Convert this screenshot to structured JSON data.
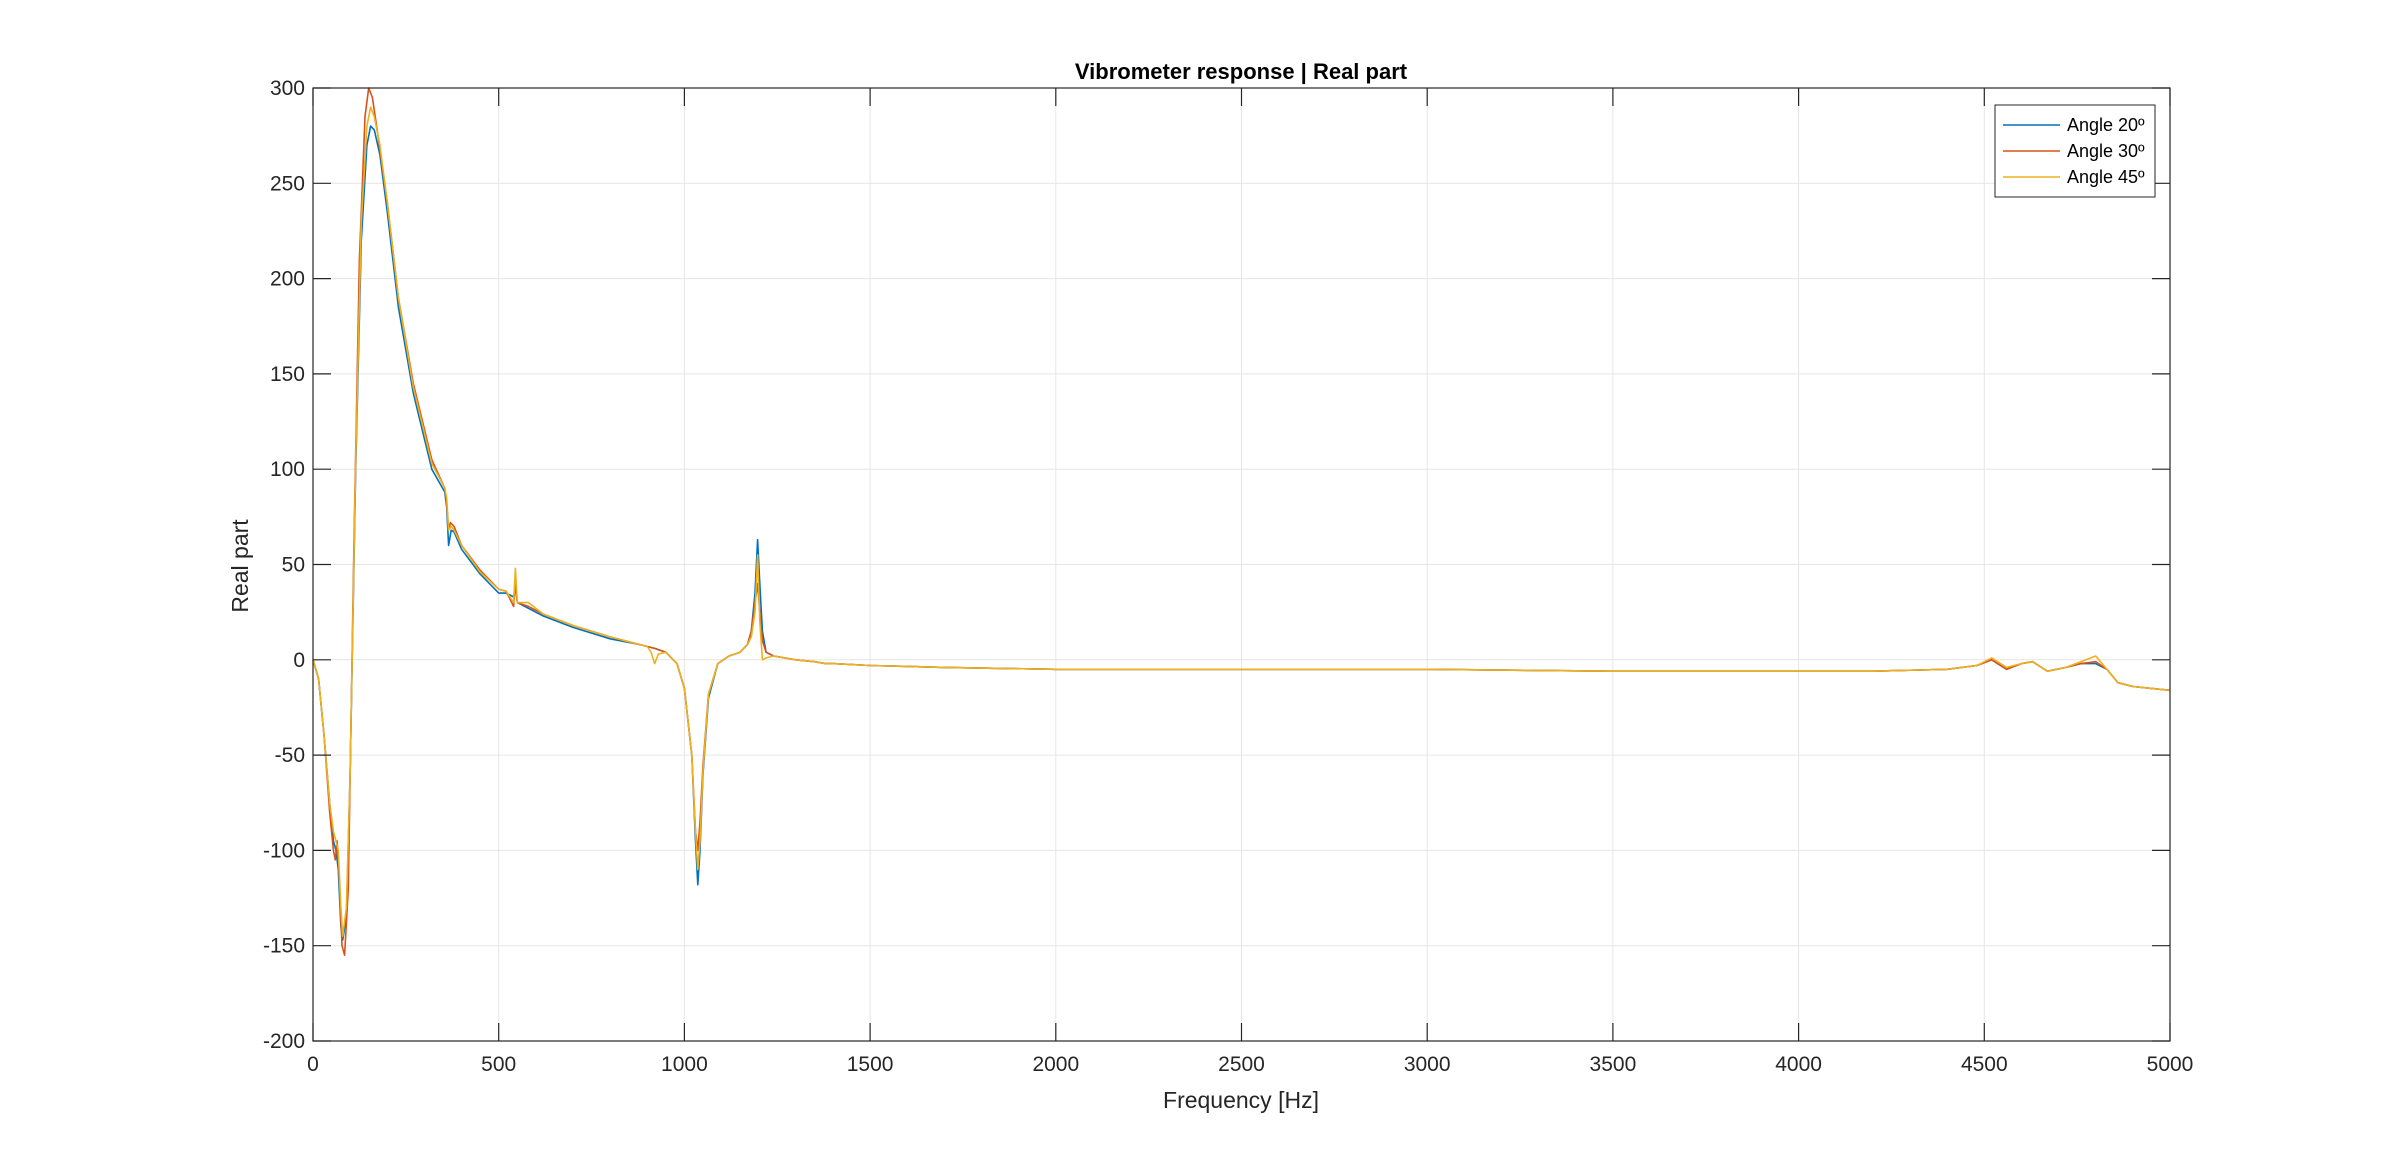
{
  "chart_data": {
    "type": "line",
    "title": "Vibrometer response | Real part",
    "xlabel": "Frequency [Hz]",
    "ylabel": "Real part",
    "xlim": [
      0,
      5000
    ],
    "ylim": [
      -200,
      300
    ],
    "xticks": [
      0,
      500,
      1000,
      1500,
      2000,
      2500,
      3000,
      3500,
      4000,
      4500,
      5000
    ],
    "yticks": [
      -200,
      -150,
      -100,
      -50,
      0,
      50,
      100,
      150,
      200,
      250,
      300
    ],
    "xtick_labels": [
      "0",
      "500",
      "1000",
      "1500",
      "2000",
      "2500",
      "3000",
      "3500",
      "4000",
      "4500",
      "5000"
    ],
    "ytick_labels": [
      "-200",
      "-150",
      "-100",
      "-50",
      "0",
      "50",
      "100",
      "150",
      "200",
      "250",
      "300"
    ],
    "grid": true,
    "legend_position": "top-right",
    "series": [
      {
        "name": "Angle 20º",
        "color": "#0072BD",
        "x": [
          0,
          15,
          30,
          45,
          55,
          62,
          68,
          75,
          80,
          90,
          100,
          115,
          130,
          145,
          155,
          165,
          180,
          200,
          230,
          270,
          320,
          355,
          360,
          365,
          372,
          380,
          400,
          450,
          500,
          520,
          540,
          545,
          550,
          580,
          620,
          700,
          800,
          880,
          900,
          920,
          950,
          980,
          1000,
          1020,
          1030,
          1036,
          1042,
          1050,
          1065,
          1090,
          1120,
          1150,
          1170,
          1180,
          1190,
          1197,
          1203,
          1210,
          1220,
          1240,
          1300,
          1350,
          1380,
          1400,
          1500,
          1700,
          2000,
          2500,
          3000,
          3500,
          4000,
          4200,
          4400,
          4480,
          4520,
          4560,
          4600,
          4630,
          4670,
          4720,
          4760,
          4800,
          4830,
          4860,
          4900,
          4950,
          5000
        ],
        "y": [
          0,
          -10,
          -40,
          -75,
          -95,
          -100,
          -110,
          -140,
          -147,
          -135,
          -60,
          100,
          220,
          270,
          280,
          278,
          265,
          235,
          185,
          140,
          100,
          88,
          80,
          60,
          68,
          67,
          58,
          45,
          35,
          35,
          33,
          38,
          30,
          27,
          23,
          17,
          11,
          8,
          7,
          6,
          4,
          -2,
          -15,
          -50,
          -95,
          -118,
          -100,
          -60,
          -20,
          -2,
          2,
          4,
          8,
          15,
          35,
          63,
          40,
          15,
          4,
          2,
          0,
          -1,
          -2,
          -2,
          -3,
          -4,
          -5,
          -5,
          -5,
          -6,
          -6,
          -6,
          -5,
          -3,
          0,
          -5,
          -2,
          -1,
          -6,
          -4,
          -2,
          -2,
          -5,
          -12,
          -14,
          -15,
          -16
        ]
      },
      {
        "name": "Angle 30º",
        "color": "#D95319",
        "x": [
          0,
          15,
          30,
          45,
          55,
          60,
          65,
          70,
          78,
          85,
          95,
          110,
          125,
          140,
          150,
          160,
          175,
          200,
          230,
          270,
          320,
          355,
          360,
          365,
          370,
          380,
          400,
          450,
          500,
          520,
          540,
          545,
          550,
          580,
          620,
          700,
          800,
          880,
          900,
          920,
          950,
          980,
          1000,
          1020,
          1030,
          1036,
          1042,
          1050,
          1065,
          1090,
          1120,
          1150,
          1170,
          1180,
          1190,
          1197,
          1203,
          1210,
          1220,
          1240,
          1300,
          1350,
          1380,
          1400,
          1500,
          1700,
          2000,
          2500,
          3000,
          3500,
          4000,
          4200,
          4400,
          4480,
          4520,
          4560,
          4600,
          4630,
          4670,
          4720,
          4760,
          4800,
          4830,
          4860,
          4900,
          4950,
          5000
        ],
        "y": [
          0,
          -10,
          -40,
          -80,
          -100,
          -105,
          -95,
          -110,
          -150,
          -155,
          -120,
          60,
          210,
          285,
          300,
          295,
          275,
          240,
          190,
          145,
          105,
          90,
          82,
          68,
          72,
          70,
          60,
          47,
          37,
          36,
          28,
          42,
          30,
          28,
          24,
          18,
          12,
          8,
          7,
          6,
          4,
          -2,
          -15,
          -50,
          -90,
          -100,
          -85,
          -55,
          -18,
          -2,
          2,
          4,
          8,
          15,
          30,
          40,
          25,
          10,
          4,
          2,
          0,
          -1,
          -2,
          -2,
          -3,
          -4,
          -5,
          -5,
          -5,
          -6,
          -6,
          -6,
          -5,
          -3,
          0,
          -5,
          -2,
          -1,
          -6,
          -4,
          -2,
          -1,
          -5,
          -12,
          -14,
          -15,
          -16
        ]
      },
      {
        "name": "Angle 45º",
        "color": "#EDB120",
        "x": [
          0,
          15,
          30,
          45,
          55,
          62,
          68,
          75,
          80,
          90,
          100,
          115,
          130,
          145,
          155,
          165,
          180,
          200,
          230,
          270,
          320,
          355,
          360,
          365,
          372,
          380,
          400,
          450,
          500,
          520,
          540,
          545,
          550,
          580,
          620,
          700,
          800,
          880,
          900,
          910,
          920,
          930,
          950,
          980,
          1000,
          1020,
          1030,
          1036,
          1042,
          1050,
          1065,
          1090,
          1120,
          1150,
          1170,
          1180,
          1190,
          1197,
          1203,
          1210,
          1220,
          1240,
          1300,
          1350,
          1380,
          1400,
          1500,
          1700,
          2000,
          2500,
          3000,
          3500,
          4000,
          4200,
          4400,
          4480,
          4520,
          4560,
          4600,
          4630,
          4670,
          4720,
          4760,
          4800,
          4830,
          4860,
          4900,
          4950,
          5000
        ],
        "y": [
          0,
          -10,
          -40,
          -75,
          -90,
          -95,
          -100,
          -130,
          -145,
          -130,
          -60,
          105,
          230,
          280,
          290,
          285,
          270,
          240,
          190,
          143,
          103,
          90,
          85,
          68,
          70,
          68,
          60,
          46,
          37,
          36,
          30,
          48,
          30,
          30,
          24,
          18,
          12,
          8,
          7,
          4,
          -2,
          3,
          4,
          -2,
          -15,
          -50,
          -90,
          -110,
          -95,
          -58,
          -18,
          -2,
          2,
          4,
          8,
          12,
          25,
          55,
          20,
          0,
          1,
          2,
          0,
          -1,
          -2,
          -2,
          -3,
          -4,
          -5,
          -5,
          -5,
          -6,
          -6,
          -6,
          -5,
          -3,
          1,
          -4,
          -2,
          -1,
          -6,
          -4,
          -1,
          2,
          -5,
          -12,
          -14,
          -15,
          -16
        ]
      }
    ]
  }
}
